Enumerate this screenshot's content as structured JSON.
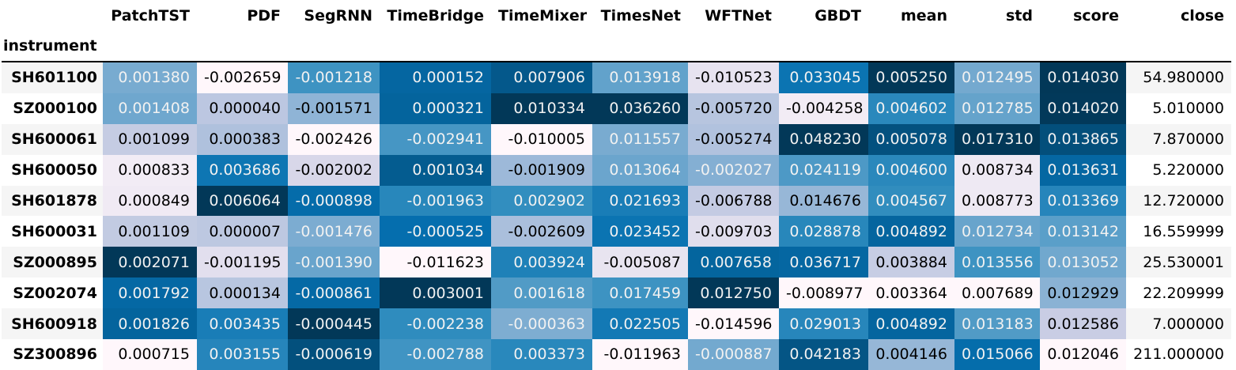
{
  "chart_data": {
    "type": "table",
    "index_name": "instrument",
    "columns": [
      "PatchTST",
      "PDF",
      "SegRNN",
      "TimeBridge",
      "TimeMixer",
      "TimesNet",
      "WFTNet",
      "GBDT",
      "mean",
      "std",
      "score",
      "close"
    ],
    "gradient_columns": [
      "PatchTST",
      "PDF",
      "SegRNN",
      "TimeBridge",
      "TimeMixer",
      "TimesNet",
      "WFTNet",
      "GBDT",
      "mean",
      "std",
      "score"
    ],
    "colormap": "PuBu",
    "rows": [
      {
        "instrument": "SH601100",
        "values": [
          "0.001380",
          "-0.002659",
          "-0.001218",
          "0.000152",
          "0.007906",
          "0.013918",
          "-0.010523",
          "0.033045",
          "0.005250",
          "0.012495",
          "0.014030",
          "54.980000"
        ]
      },
      {
        "instrument": "SZ000100",
        "values": [
          "0.001408",
          "0.000040",
          "-0.001571",
          "0.000321",
          "0.010334",
          "0.036260",
          "-0.005720",
          "-0.004258",
          "0.004602",
          "0.012785",
          "0.014020",
          "5.010000"
        ]
      },
      {
        "instrument": "SH600061",
        "values": [
          "0.001099",
          "0.000383",
          "-0.002426",
          "-0.002941",
          "-0.010005",
          "0.011557",
          "-0.005274",
          "0.048230",
          "0.005078",
          "0.017310",
          "0.013865",
          "7.870000"
        ]
      },
      {
        "instrument": "SH600050",
        "values": [
          "0.000833",
          "0.003686",
          "-0.002002",
          "0.001034",
          "-0.001909",
          "0.013064",
          "-0.002027",
          "0.024119",
          "0.004600",
          "0.008734",
          "0.013631",
          "5.220000"
        ]
      },
      {
        "instrument": "SH601878",
        "values": [
          "0.000849",
          "0.006064",
          "-0.000898",
          "-0.001963",
          "0.002902",
          "0.021693",
          "-0.006788",
          "0.014676",
          "0.004567",
          "0.008773",
          "0.013369",
          "12.720000"
        ]
      },
      {
        "instrument": "SH600031",
        "values": [
          "0.001109",
          "0.000007",
          "-0.001476",
          "-0.000525",
          "-0.002609",
          "0.023452",
          "-0.009703",
          "0.028878",
          "0.004892",
          "0.012734",
          "0.013142",
          "16.559999"
        ]
      },
      {
        "instrument": "SZ000895",
        "values": [
          "0.002071",
          "-0.001195",
          "-0.001390",
          "-0.011623",
          "0.003924",
          "-0.005087",
          "0.007658",
          "0.036717",
          "0.003884",
          "0.013556",
          "0.013052",
          "25.530001"
        ]
      },
      {
        "instrument": "SZ002074",
        "values": [
          "0.001792",
          "0.000134",
          "-0.000861",
          "0.003001",
          "0.001618",
          "0.017459",
          "0.012750",
          "-0.008977",
          "0.003364",
          "0.007689",
          "0.012929",
          "22.209999"
        ]
      },
      {
        "instrument": "SH600918",
        "values": [
          "0.001826",
          "0.003435",
          "-0.000445",
          "-0.002238",
          "-0.000363",
          "0.022505",
          "-0.014596",
          "0.029013",
          "0.004892",
          "0.013183",
          "0.012586",
          "7.000000"
        ]
      },
      {
        "instrument": "SZ300896",
        "values": [
          "0.000715",
          "0.003155",
          "-0.000619",
          "-0.002788",
          "0.003373",
          "-0.011963",
          "-0.000887",
          "0.042183",
          "0.004146",
          "0.015066",
          "0.012046",
          "211.000000"
        ]
      }
    ]
  }
}
